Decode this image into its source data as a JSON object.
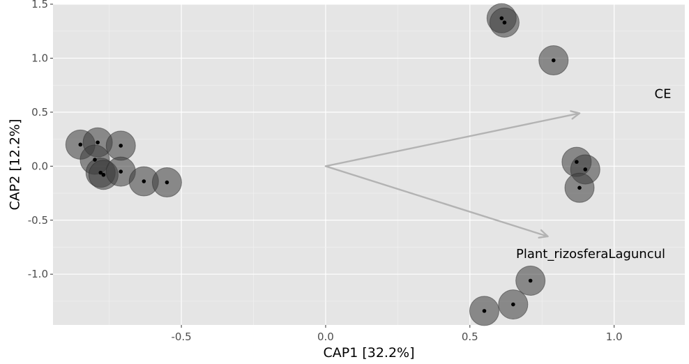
{
  "chart_data": {
    "type": "scatter",
    "title": "",
    "xlabel": "CAP1   [32.2%]",
    "ylabel": "CAP2   [12.2%]",
    "xlim": [
      -0.945,
      1.245
    ],
    "ylim": [
      -1.47,
      1.5
    ],
    "x_ticks": [
      -0.5,
      0.0,
      0.5,
      1.0
    ],
    "x_tick_labels": [
      "-0.5",
      "0.0",
      "0.5",
      "1.0"
    ],
    "y_ticks": [
      1.5,
      1.0,
      0.5,
      0.0,
      -0.5,
      -1.0
    ],
    "y_tick_labels": [
      "1.5",
      "1.0",
      "0.5",
      "0.0",
      "-0.5",
      "-1.0"
    ],
    "grid": true,
    "points": [
      {
        "x": -0.85,
        "y": 0.2
      },
      {
        "x": -0.79,
        "y": 0.22
      },
      {
        "x": -0.71,
        "y": 0.19
      },
      {
        "x": -0.8,
        "y": 0.06
      },
      {
        "x": -0.78,
        "y": -0.06
      },
      {
        "x": -0.77,
        "y": -0.08
      },
      {
        "x": -0.71,
        "y": -0.05
      },
      {
        "x": -0.63,
        "y": -0.14
      },
      {
        "x": -0.55,
        "y": -0.15
      },
      {
        "x": 0.61,
        "y": 1.37
      },
      {
        "x": 0.62,
        "y": 1.33
      },
      {
        "x": 0.79,
        "y": 0.98
      },
      {
        "x": 0.87,
        "y": 0.04
      },
      {
        "x": 0.9,
        "y": -0.03
      },
      {
        "x": 0.88,
        "y": -0.2
      },
      {
        "x": 0.71,
        "y": -1.06
      },
      {
        "x": 0.65,
        "y": -1.28
      },
      {
        "x": 0.55,
        "y": -1.34
      }
    ],
    "arrows": [
      {
        "label": "CE",
        "x": 0.88,
        "y": 0.49,
        "label_x": 1.14,
        "label_y": 0.63
      },
      {
        "label": "Plant_rizosferaLaguncul",
        "x": 0.77,
        "y": -0.65,
        "label_x": 0.66,
        "label_y": -0.85
      }
    ],
    "colors": {
      "panel": "#e5e5e5",
      "grid_major": "#ffffff",
      "grid_minor": "#f2f2f2",
      "bubble": "#3d3d3d",
      "point": "#000000",
      "arrow": "#b3b3b3"
    }
  }
}
